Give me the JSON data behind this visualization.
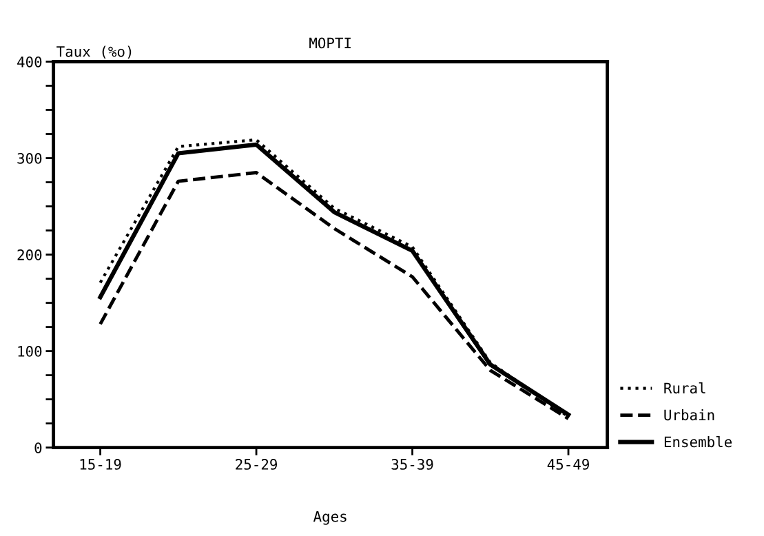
{
  "chart_data": {
    "type": "line",
    "title": "MOPTI",
    "xlabel": "Ages",
    "ylabel": "Taux (%o)",
    "categories": [
      "15-19",
      null,
      "25-29",
      null,
      "35-39",
      null,
      "45-49"
    ],
    "series": [
      {
        "name": "Rural",
        "color": "#000000",
        "line_style": "dotted",
        "values": [
          171,
          312,
          319,
          248,
          208,
          88,
          32
        ]
      },
      {
        "name": "Urbain",
        "color": "#000000",
        "line_style": "dashed",
        "values": [
          128,
          276,
          285,
          227,
          177,
          80,
          30
        ]
      },
      {
        "name": "Ensemble",
        "color": "#000000",
        "line_style": "solid",
        "values": [
          156,
          305,
          314,
          244,
          204,
          86,
          34
        ]
      }
    ],
    "ylim": [
      0,
      400
    ],
    "yticks": [
      0,
      {
        "value": 25,
        "label": null
      },
      {
        "value": 50,
        "label": null
      },
      {
        "value": 75,
        "label": null
      },
      100,
      {
        "value": 125,
        "label": null
      },
      {
        "value": 150,
        "label": null
      },
      {
        "value": 175,
        "label": null
      },
      200,
      {
        "value": 225,
        "label": null
      },
      {
        "value": 250,
        "label": null
      },
      {
        "value": 275,
        "label": null
      },
      300,
      {
        "value": 325,
        "label": null
      },
      {
        "value": 350,
        "label": null
      },
      {
        "value": 375,
        "label": null
      },
      400
    ],
    "grid": false,
    "legend": "bottom right"
  }
}
